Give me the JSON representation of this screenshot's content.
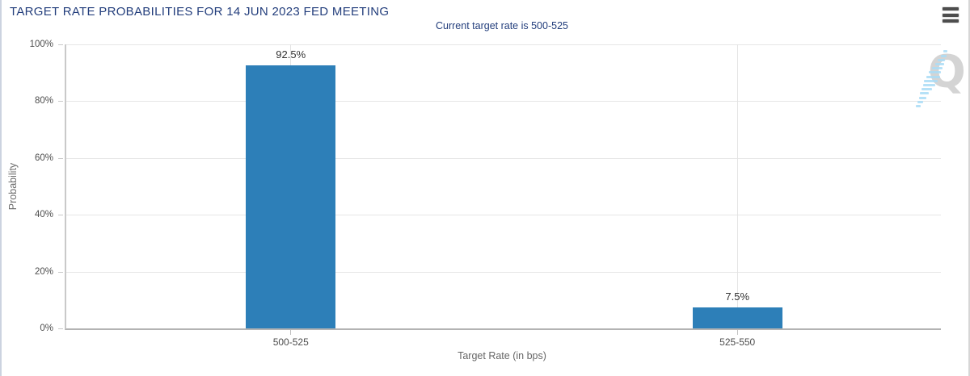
{
  "header": {
    "title": "TARGET RATE PROBABILITIES FOR 14 JUN 2023 FED MEETING",
    "menu_icon": "hamburger-menu"
  },
  "subtitle": "Current target rate is 500-525",
  "chart_data": {
    "type": "bar",
    "title": "TARGET RATE PROBABILITIES FOR 14 JUN 2023 FED MEETING",
    "subtitle": "Current target rate is 500-525",
    "categories": [
      "500-525",
      "525-550"
    ],
    "values": [
      92.5,
      7.5
    ],
    "value_labels": [
      "92.5%",
      "7.5%"
    ],
    "xlabel": "Target Rate (in bps)",
    "ylabel": "Probability",
    "ylim": [
      0,
      100
    ],
    "yticks": [
      0,
      20,
      40,
      60,
      80,
      100
    ],
    "ytick_labels": [
      "0%",
      "20%",
      "40%",
      "60%",
      "80%",
      "100%"
    ],
    "grid": true,
    "legend_position": "none",
    "bar_color": "#2d7fb8",
    "category_center_pct": [
      25.67,
      76.73
    ]
  },
  "watermark": {
    "name": "quikstrike-logo",
    "letter": "Q"
  },
  "colors": {
    "title_text": "#233e7c",
    "bar": "#2d7fb8",
    "gridline": "#e6e6e6",
    "axis_line": "#b3b3b3",
    "watermark_gray": "#d4d4d4",
    "watermark_blue": "#a9dcf6"
  }
}
